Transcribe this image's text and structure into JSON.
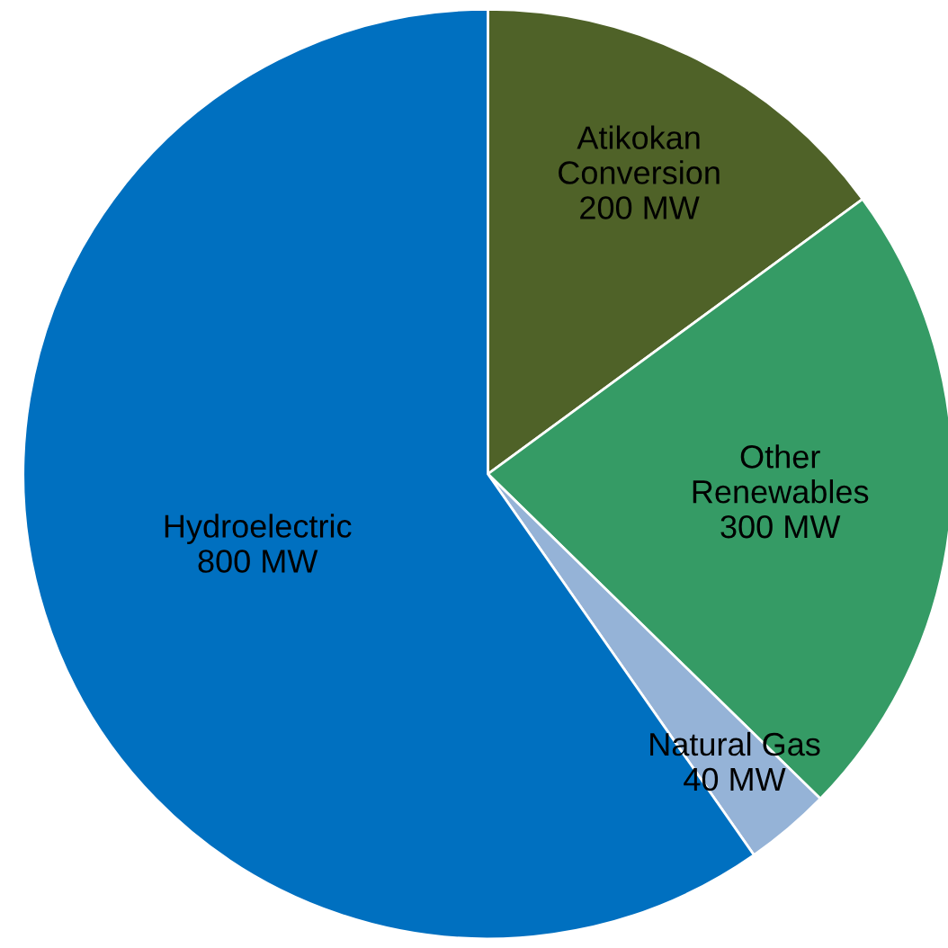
{
  "chart_data": {
    "type": "pie",
    "categories": [
      "Atikokan\nConversion",
      "Other\nRenewables",
      "Natural Gas",
      "Hydroelectric"
    ],
    "values": [
      200,
      300,
      40,
      800
    ],
    "value_labels": [
      "200 MW",
      "300 MW",
      "40 MW",
      "800 MW"
    ],
    "colors": [
      "#4f6228",
      "#359b65",
      "#95b3d7",
      "#0070c0"
    ]
  }
}
